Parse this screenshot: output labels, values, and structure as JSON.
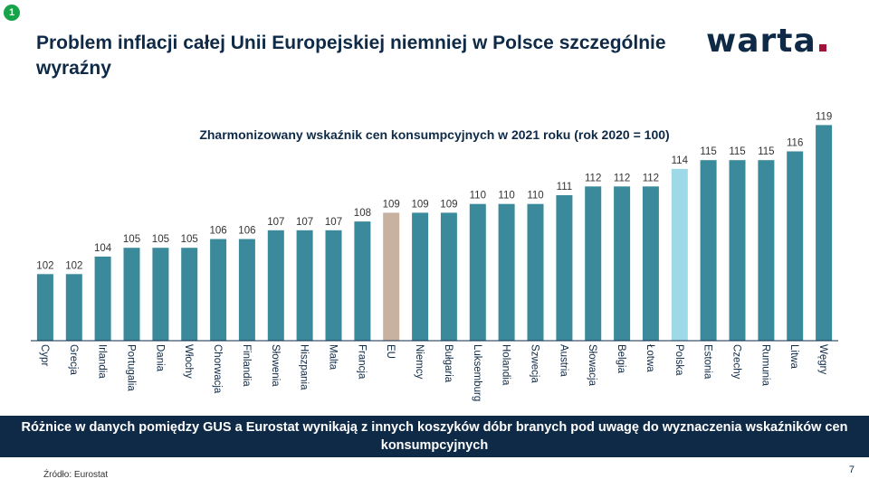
{
  "slide": {
    "badge": "1",
    "title": "Problem inflacji całej Unii Europejskiej niemniej w Polsce szczególnie wyraźny",
    "logo": "warta",
    "banner": "Różnice w danych pomiędzy GUS a Eurostat wynikają z innych koszyków dóbr branych pod uwagę do wyznaczenia wskaźników cen konsumpcyjnych",
    "source": "Źródło: Eurostat",
    "page_number": "7"
  },
  "colors": {
    "bar_default": "#3a8a9b",
    "bar_eu": "#c9b1a0",
    "bar_poland": "#9dd9e6",
    "navy": "#0e2a47",
    "logo_accent": "#a3123a"
  },
  "chart_data": {
    "type": "bar",
    "title": "Zharmonizowany wskaźnik cen konsumpcyjnych w 2021 roku (rok 2020 = 100)",
    "categories": [
      "Cypr",
      "Grecja",
      "Irlandia",
      "Portugalia",
      "Dania",
      "Włochy",
      "Chorwacja",
      "Finlandia",
      "Słowenia",
      "Hiszpania",
      "Malta",
      "Francja",
      "EU",
      "Niemcy",
      "Bułgaria",
      "Luksemburg",
      "Holandia",
      "Szwecja",
      "Austria",
      "Słowacja",
      "Belgia",
      "Łotwa",
      "Polska",
      "Estonia",
      "Czechy",
      "Rumunia",
      "Litwa",
      "Węgry"
    ],
    "values": [
      102,
      102,
      104,
      105,
      105,
      105,
      106,
      106,
      107,
      107,
      107,
      108,
      109,
      109,
      109,
      110,
      110,
      110,
      111,
      112,
      112,
      112,
      114,
      115,
      115,
      115,
      116,
      119
    ],
    "highlights": {
      "EU": "bar_eu",
      "Polska": "bar_poland"
    },
    "data_labels": true,
    "grid": false,
    "legend": "none"
  }
}
